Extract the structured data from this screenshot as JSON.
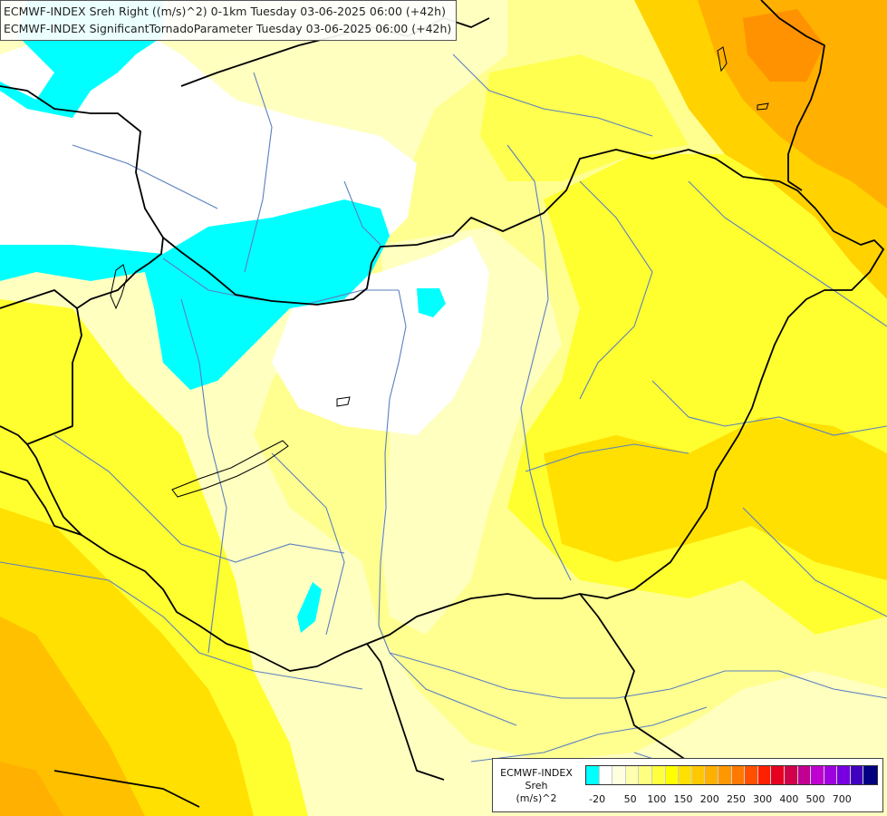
{
  "header": {
    "line1": "ECMWF-INDEX Sreh Right ((m/s)^2) 0-1km Tuesday 03-06-2025 06:00 (+42h)",
    "line2": "ECMWF-INDEX SignificantTornadoParameter Tuesday 03-06-2025 06:00 (+42h)"
  },
  "legend": {
    "line1": "ECMWF-INDEX",
    "line2": "Sreh",
    "line3": "(m/s)^2",
    "colors": [
      "#00ffff",
      "#ffffff",
      "#ffffe0",
      "#ffffb0",
      "#ffff80",
      "#ffff40",
      "#ffff00",
      "#ffe000",
      "#ffc800",
      "#ffb000",
      "#ff9800",
      "#ff7800",
      "#ff5000",
      "#ff2000",
      "#e80020",
      "#d0004a",
      "#c00090",
      "#c000d0",
      "#a000e0",
      "#7800e0",
      "#4000c0",
      "#000080"
    ],
    "ticks": [
      "-20",
      "50",
      "100",
      "150",
      "200",
      "250",
      "300",
      "400",
      "500",
      "700"
    ]
  },
  "colors": {
    "border": "#000000",
    "river": "#5b7fc0",
    "cyan": "#00ffff",
    "white": "#ffffff",
    "pale_yellow": "#ffffc0",
    "light_yellow": "#ffff90",
    "yellow": "#ffff00",
    "amber": "#ffd200",
    "orange": "#ffaa00",
    "dark_orange": "#ff8000"
  }
}
